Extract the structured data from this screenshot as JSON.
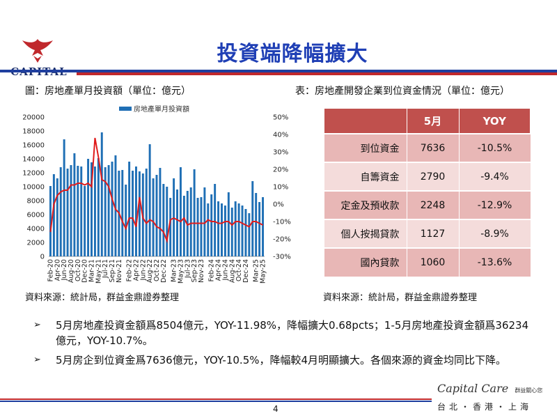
{
  "header": {
    "logo_text": "CAPITAL",
    "title": "投資端降幅擴大"
  },
  "colors": {
    "title_blue": "#1f3fb5",
    "bar_blue": "#1f6fb5",
    "line_red": "#e01b1b",
    "table_header": "#c0504d"
  },
  "left": {
    "caption": "圖：房地產單月投資額（單位：億元）",
    "source": "資料來源：統計局，群益金鼎證券整理"
  },
  "right": {
    "caption": "表：房地產開發企業到位資金情況（單位：億元）",
    "source": "資料來源：統計局，群益金鼎證券整理",
    "table": {
      "headers": [
        "",
        "5月",
        "YOY"
      ],
      "rows": [
        {
          "label": "到位資金",
          "value": "7636",
          "yoy": "-10.5%"
        },
        {
          "label": "自籌資金",
          "value": "2790",
          "yoy": "-9.4%"
        },
        {
          "label": "定金及預收款",
          "value": "2248",
          "yoy": "-12.9%"
        },
        {
          "label": "個人按揭貸款",
          "value": "1127",
          "yoy": "-8.9%"
        },
        {
          "label": "國內貸款",
          "value": "1060",
          "yoy": "-13.6%"
        }
      ]
    }
  },
  "bullets": [
    "5月房地產投資金額爲8504億元，YOY-11.98%，降幅擴大0.68pcts；1-5月房地產投資金額爲36234億元，YOY-10.7%。",
    "5月房企到位資金爲7636億元，YOY-10.5%，降幅較4月明顯擴大。各個來源的資金均同比下降。"
  ],
  "footer": {
    "page": "4",
    "brand_script": "Capital Care",
    "brand_small": "群益關心您",
    "cities": "台北・香港・上海"
  },
  "chart_data": {
    "type": "bar",
    "legend": "房地產單月投資額",
    "legend_position": "top",
    "ylim_left": [
      0,
      20000
    ],
    "ylim_right": [
      -30,
      50
    ],
    "left_ticks": [
      "20000",
      "18000",
      "16000",
      "14000",
      "12000",
      "10000",
      "8000",
      "6000",
      "4000",
      "2000",
      "0"
    ],
    "right_ticks": [
      "50%",
      "40%",
      "30%",
      "20%",
      "10%",
      "0%",
      "-10%",
      "-20%",
      "-30%"
    ],
    "x_tick_labels": [
      "Feb-20",
      "Apr-20",
      "Jun-20",
      "Aug-20",
      "Oct-20",
      "Dec-20",
      "Mar-21",
      "May-21",
      "Jul-21",
      "Sep-21",
      "Nov-21",
      "Feb-22",
      "Apr-22",
      "Jun-22",
      "Aug-22",
      "Oct-22",
      "Dec-22",
      "Mar-23",
      "May-23",
      "Jul-23",
      "Sep-23",
      "Nov-23",
      "Feb-24",
      "Apr-24",
      "Jun-24",
      "Aug-24",
      "Oct-24",
      "Dec-24",
      "Mar-25",
      "May-25"
    ],
    "categories": [
      "Feb-20",
      "Mar-20",
      "Apr-20",
      "May-20",
      "Jun-20",
      "Jul-20",
      "Aug-20",
      "Sep-20",
      "Oct-20",
      "Nov-20",
      "Dec-20",
      "Jan-21",
      "Mar-21",
      "Apr-21",
      "May-21",
      "Jun-21",
      "Jul-21",
      "Aug-21",
      "Sep-21",
      "Oct-21",
      "Nov-21",
      "Dec-21",
      "Jan-22",
      "Feb-22",
      "Mar-22",
      "Apr-22",
      "May-22",
      "Jun-22",
      "Jul-22",
      "Aug-22",
      "Sep-22",
      "Oct-22",
      "Nov-22",
      "Dec-22",
      "Jan-23",
      "Feb-23",
      "Mar-23",
      "Apr-23",
      "May-23",
      "Jun-23",
      "Jul-23",
      "Aug-23",
      "Sep-23",
      "Oct-23",
      "Nov-23",
      "Dec-23",
      "Jan-24",
      "Feb-24",
      "Mar-24",
      "Apr-24",
      "May-24",
      "Jun-24",
      "Jul-24",
      "Aug-24",
      "Sep-24",
      "Oct-24",
      "Nov-24",
      "Dec-24",
      "Jan-25",
      "Feb-25",
      "Mar-25",
      "Apr-25",
      "May-25"
    ],
    "values": [
      10100,
      11800,
      11200,
      12800,
      16800,
      12600,
      13100,
      14800,
      13000,
      12900,
      10100,
      14000,
      13500,
      12900,
      14100,
      17800,
      12800,
      13100,
      13600,
      14500,
      12300,
      12400,
      10300,
      13600,
      12300,
      12900,
      12200,
      11900,
      12600,
      16100,
      11200,
      11700,
      12700,
      10400,
      10000,
      8400,
      11200,
      9600,
      12800,
      8700,
      9400,
      9900,
      12500,
      8400,
      8500,
      9900,
      7600,
      8900,
      10400,
      7900,
      7600,
      7300,
      9200,
      7000,
      7900,
      7600,
      7300,
      6800,
      6200,
      10800,
      9100,
      7800,
      8500
    ],
    "series": [
      {
        "name": "房地產單月投資額",
        "type": "bar",
        "axis": "left"
      },
      {
        "type": "line",
        "axis": "right",
        "values": [
          -16,
          0,
          5,
          7,
          8,
          8,
          11,
          11,
          12,
          12,
          11,
          12,
          10,
          38,
          27,
          14,
          13,
          10,
          3,
          -3,
          -5,
          -10,
          -14,
          -8,
          -8,
          -13,
          4,
          -8,
          -11,
          -9,
          -10,
          -13,
          -14,
          -16,
          -21,
          -9,
          -8,
          -9,
          -10,
          -8,
          -12,
          -11,
          -11,
          -11,
          -11,
          -11,
          -9,
          -10,
          -10,
          -11,
          -11,
          -10,
          -10,
          -12,
          -10,
          -10,
          -11,
          -12,
          -13,
          -10,
          -10,
          -11,
          -12
        ]
      }
    ],
    "xlabel": "",
    "ylabel": ""
  }
}
